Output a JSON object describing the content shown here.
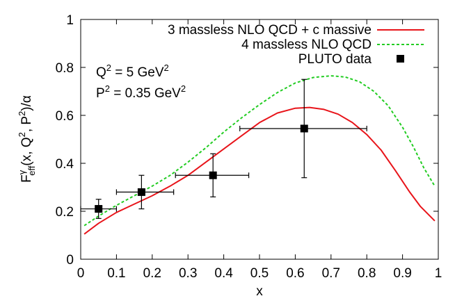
{
  "chart_data": {
    "type": "line",
    "title": "",
    "xlabel": "x",
    "ylabel": {
      "base": "F",
      "sup1": "γ",
      "sub1": "eff",
      "mid1": "(x, Q",
      "sup2": "2",
      "mid2": ", P",
      "sup3": "2",
      "tail": ")/α"
    },
    "xlim": [
      0,
      1
    ],
    "ylim": [
      0,
      1
    ],
    "x_ticks": [
      "0",
      "0.1",
      "0.2",
      "0.3",
      "0.4",
      "0.5",
      "0.6",
      "0.7",
      "0.8",
      "0.9",
      "1"
    ],
    "y_ticks": [
      "0",
      "0.2",
      "0.4",
      "0.6",
      "0.8",
      "1"
    ],
    "grid": false,
    "legend_position": "top-right",
    "annotations": [
      {
        "prefix": "Q",
        "sup": "2",
        "suffix": " = 5 GeV",
        "sup2": "2"
      },
      {
        "prefix": "P",
        "sup": "2",
        "suffix": " = 0.35 GeV",
        "sup2": "2"
      }
    ],
    "series": [
      {
        "name": "3 massless NLO QCD + c massive",
        "style": "solid",
        "color": "#e8141a",
        "x": [
          0.01,
          0.05,
          0.1,
          0.15,
          0.2,
          0.25,
          0.3,
          0.35,
          0.4,
          0.45,
          0.5,
          0.55,
          0.6,
          0.64,
          0.68,
          0.72,
          0.76,
          0.8,
          0.84,
          0.88,
          0.92,
          0.95,
          0.99
        ],
        "y": [
          0.105,
          0.15,
          0.195,
          0.23,
          0.265,
          0.305,
          0.35,
          0.405,
          0.46,
          0.515,
          0.57,
          0.61,
          0.63,
          0.633,
          0.625,
          0.605,
          0.57,
          0.52,
          0.455,
          0.37,
          0.28,
          0.22,
          0.16
        ]
      },
      {
        "name": "4 massless NLO QCD",
        "style": "dashed",
        "color": "#22cc22",
        "x": [
          0.01,
          0.05,
          0.1,
          0.15,
          0.2,
          0.25,
          0.3,
          0.35,
          0.4,
          0.45,
          0.5,
          0.55,
          0.6,
          0.65,
          0.7,
          0.74,
          0.78,
          0.82,
          0.86,
          0.9,
          0.93,
          0.96,
          0.99
        ],
        "y": [
          0.14,
          0.18,
          0.225,
          0.265,
          0.305,
          0.35,
          0.405,
          0.465,
          0.53,
          0.59,
          0.645,
          0.695,
          0.735,
          0.758,
          0.765,
          0.76,
          0.74,
          0.7,
          0.64,
          0.55,
          0.47,
          0.38,
          0.305
        ]
      }
    ],
    "data_points": {
      "name": "PLUTO data",
      "color": "#000000",
      "points": [
        {
          "x": 0.05,
          "y": 0.21,
          "xerr_low": 0.0,
          "xerr_high": 0.1,
          "yerr_low": 0.17,
          "yerr_high": 0.25
        },
        {
          "x": 0.17,
          "y": 0.28,
          "xerr_low": 0.1,
          "xerr_high": 0.26,
          "yerr_low": 0.21,
          "yerr_high": 0.35
        },
        {
          "x": 0.37,
          "y": 0.35,
          "xerr_low": 0.265,
          "xerr_high": 0.47,
          "yerr_low": 0.26,
          "yerr_high": 0.44
        },
        {
          "x": 0.625,
          "y": 0.545,
          "xerr_low": 0.445,
          "xerr_high": 0.8,
          "yerr_low": 0.34,
          "yerr_high": 0.75
        }
      ]
    }
  }
}
